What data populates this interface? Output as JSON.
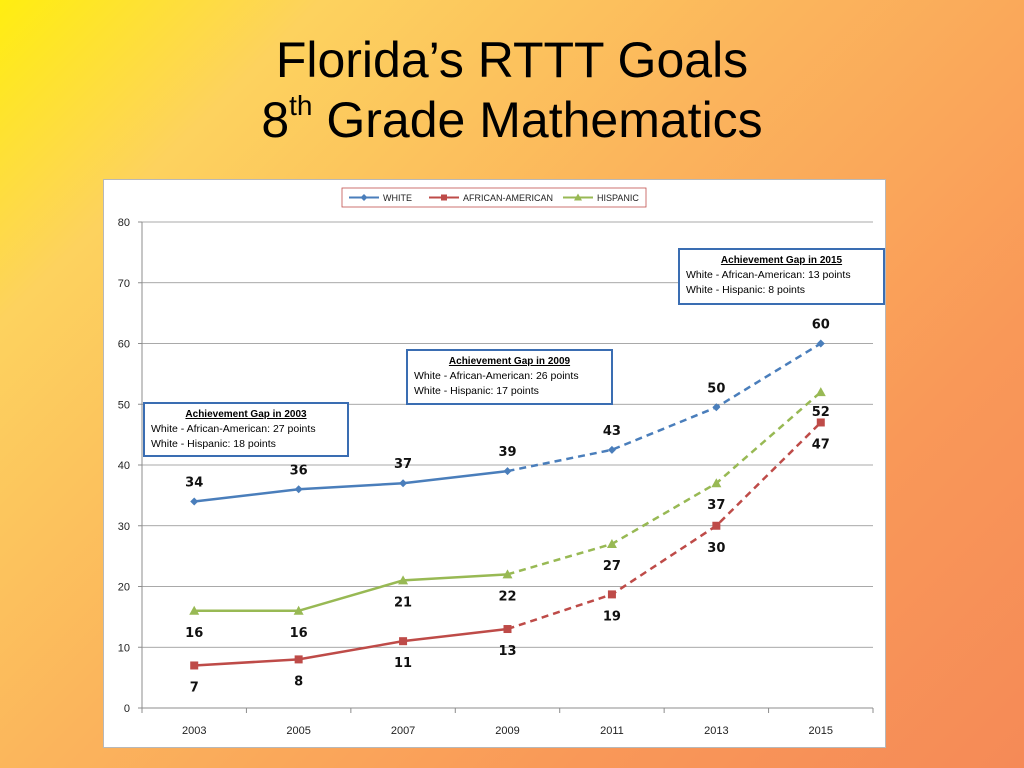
{
  "slide": {
    "title_line1": "Florida’s RTTT Goals",
    "title_line2_num": "8",
    "title_line2_sup": "th",
    "title_line2_rest": " Grade Mathematics"
  },
  "annotations": {
    "gap2003": {
      "title": "Achievement Gap in 2003",
      "line1": "White - African-American:  27 points",
      "line2": "White - Hispanic:  18 points"
    },
    "gap2009": {
      "title": "Achievement Gap in 2009",
      "line1": "White - African-American:  26 points",
      "line2": "White - Hispanic:  17 points"
    },
    "gap2015": {
      "title": "Achievement Gap in 2015",
      "line1": "White - African-American:  13 points",
      "line2": "White - Hispanic:  8 points"
    }
  },
  "chart_data": {
    "type": "line",
    "categories": [
      "2003",
      "2005",
      "2007",
      "2009",
      "2011",
      "2013",
      "2015"
    ],
    "ylim": [
      0,
      80
    ],
    "yticks": [
      0,
      10,
      20,
      30,
      40,
      50,
      60,
      70,
      80
    ],
    "grid": true,
    "legend_position": "top-center",
    "solid_through_category": "2009",
    "series": [
      {
        "name": "WHITE",
        "color": "#4a7ebb",
        "marker": "diamond",
        "values": [
          34,
          36,
          37,
          39,
          42.5,
          49.5,
          60
        ],
        "labels": [
          "34",
          "36",
          "37",
          "39",
          "43",
          "50",
          "60"
        ]
      },
      {
        "name": "AFRICAN-AMERICAN",
        "color": "#be4b48",
        "marker": "square",
        "values": [
          7,
          8,
          11,
          13,
          18.7,
          30,
          47
        ],
        "labels": [
          "7",
          "8",
          "11",
          "13",
          "19",
          "30",
          "47"
        ]
      },
      {
        "name": "HISPANIC",
        "color": "#98b954",
        "marker": "triangle",
        "values": [
          16,
          16,
          21,
          22,
          27,
          37,
          52
        ],
        "labels": [
          "16",
          "16",
          "21",
          "22",
          "27",
          "37",
          "52"
        ]
      }
    ]
  }
}
